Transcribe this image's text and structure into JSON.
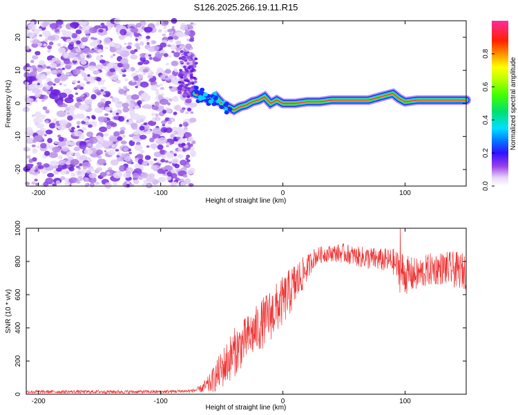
{
  "title": "S126.2025.266.19.11.R15",
  "chart_data": [
    {
      "type": "heatmap",
      "xlabel": "Height of straight line (km)",
      "ylabel": "Frequency (Hz)",
      "xlim": [
        -210,
        150
      ],
      "ylim": [
        -25,
        25
      ],
      "xticks": [
        -200,
        -100,
        0,
        100
      ],
      "yticks": [
        -20,
        -10,
        0,
        10,
        20
      ],
      "xtick_labels": [
        "-200",
        "-100",
        "0",
        "100"
      ],
      "ytick_labels": [
        "-20",
        "-10",
        "0",
        "10",
        "20"
      ],
      "noise_region_x": [
        -210,
        -73
      ],
      "signal_track": {
        "x": [
          -72,
          -65,
          -60,
          -55,
          -50,
          -45,
          -40,
          -35,
          -30,
          -25,
          -20,
          -15,
          -10,
          -5,
          0,
          10,
          20,
          30,
          40,
          50,
          60,
          70,
          80,
          85,
          90,
          95,
          100,
          110,
          120,
          130,
          140,
          150
        ],
        "freq": [
          3,
          2,
          1,
          2,
          0,
          -1,
          -2,
          -1,
          -0.5,
          0.5,
          1,
          2,
          0,
          1,
          0,
          0,
          0.5,
          0.5,
          1,
          1,
          1,
          1,
          2,
          2.5,
          3,
          1.5,
          0.5,
          1,
          1,
          1,
          1,
          1
        ]
      },
      "colorbar": {
        "label": "Normalized spectral amplitude",
        "range": [
          0,
          1
        ],
        "ticks": [
          0.0,
          0.2,
          0.4,
          0.6,
          0.8
        ],
        "tick_labels": [
          "0.0",
          "0.2",
          "0.4",
          "0.6",
          "0.8"
        ]
      }
    },
    {
      "type": "line",
      "xlabel": "Height of straight line (km)",
      "ylabel": "SNR (10 * v/v)",
      "xlim": [
        -210,
        150
      ],
      "ylim": [
        0,
        1000
      ],
      "xticks": [
        -200,
        -100,
        0,
        100
      ],
      "yticks": [
        0,
        200,
        400,
        600,
        800,
        1000
      ],
      "xtick_labels": [
        "-200",
        "-100",
        "0",
        "100"
      ],
      "ytick_labels": [
        "0",
        "200",
        "400",
        "600",
        "800",
        "1000"
      ],
      "color": "#ee3333",
      "envelope": {
        "x": [
          -210,
          -100,
          -75,
          -68,
          -60,
          -50,
          -40,
          -30,
          -20,
          -10,
          0,
          10,
          20,
          25,
          30,
          40,
          50,
          60,
          70,
          80,
          90,
          95,
          96,
          100,
          110,
          120,
          130,
          140,
          150
        ],
        "center": [
          15,
          15,
          20,
          30,
          60,
          150,
          250,
          330,
          400,
          480,
          560,
          660,
          760,
          820,
          840,
          850,
          850,
          830,
          820,
          810,
          800,
          760,
          740,
          720,
          720,
          750,
          760,
          750,
          740
        ],
        "amp": [
          10,
          10,
          10,
          20,
          60,
          120,
          150,
          140,
          150,
          160,
          150,
          140,
          80,
          60,
          50,
          50,
          60,
          60,
          70,
          70,
          80,
          100,
          150,
          120,
          100,
          100,
          100,
          110,
          110
        ]
      },
      "peak": {
        "x": 96,
        "y": 1020
      }
    }
  ]
}
